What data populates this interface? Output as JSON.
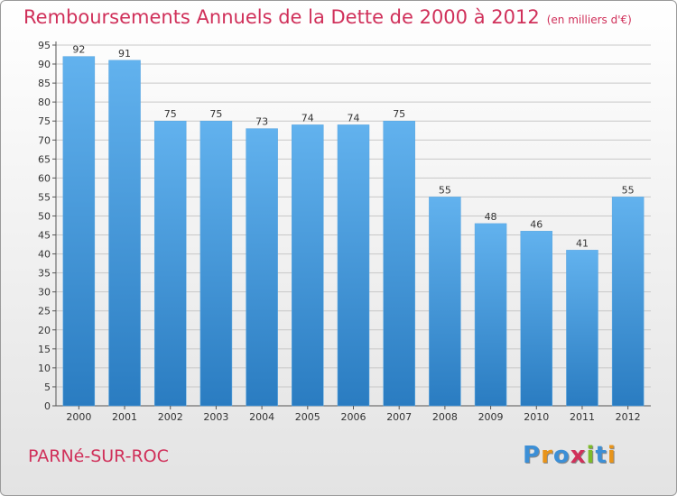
{
  "header": {
    "title": "Remboursements Annuels de la Dette de 2000 à 2012",
    "unit": "(en milliers d'€)"
  },
  "footer": {
    "commune": "PARNé-SUR-ROC",
    "logo": "Proxiti"
  },
  "logo_letters": [
    {
      "ch": "P",
      "color": "#3c8fd6"
    },
    {
      "ch": "r",
      "color": "#e8941a"
    },
    {
      "ch": "o",
      "color": "#3c8fd6"
    },
    {
      "ch": "x",
      "color": "#d0305a"
    },
    {
      "ch": "i",
      "color": "#7dbb2a"
    },
    {
      "ch": "t",
      "color": "#3c8fd6"
    },
    {
      "ch": "i",
      "color": "#e8941a"
    }
  ],
  "colors": {
    "title": "#d0305a",
    "bar_light": "#62b2ee",
    "bar_dark": "#2a7cc1"
  },
  "chart_data": {
    "type": "bar",
    "title": "Remboursements Annuels de la Dette de 2000 à 2012",
    "subtitle": "(en milliers d'€)",
    "categories": [
      "2000",
      "2001",
      "2002",
      "2003",
      "2004",
      "2005",
      "2006",
      "2007",
      "2008",
      "2009",
      "2010",
      "2011",
      "2012"
    ],
    "values": [
      92,
      91,
      75,
      75,
      73,
      74,
      74,
      75,
      55,
      48,
      46,
      41,
      55
    ],
    "ylim": [
      0,
      95
    ],
    "yticks": [
      0,
      5,
      10,
      15,
      20,
      25,
      30,
      35,
      40,
      45,
      50,
      55,
      60,
      65,
      70,
      75,
      80,
      85,
      90,
      95
    ],
    "grid": true,
    "legend": "none"
  }
}
